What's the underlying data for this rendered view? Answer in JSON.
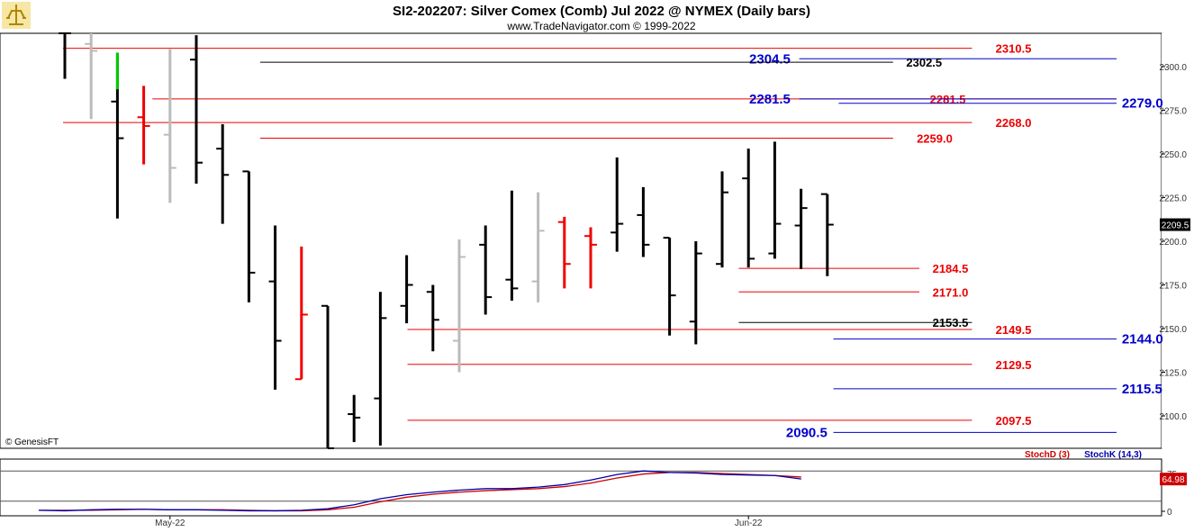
{
  "header": {
    "title": "SI2-202207:  Silver Comex (Comb) Jul 2022 @ NYMEX  (Daily bars)",
    "subtitle": "www.TradeNavigator.com © 1999-2022",
    "logo": "trade-navigator-logo"
  },
  "watermark": "© GenesisFT",
  "colors": {
    "up_bar": "#000000",
    "down_bar": "#ee0000",
    "gray_bar": "#bbbbbb",
    "highlight": "#00cc00",
    "red_level": "#ee0000",
    "blue_level": "#0000cc",
    "black_level": "#000000",
    "stochD": "#cc0000",
    "stochK": "#0000aa"
  },
  "chart_data": {
    "type": "ohlc",
    "price_axis": {
      "ylim": [
        2085,
        2320
      ],
      "ticks": [
        "2100.0",
        "2125.0",
        "2150.0",
        "2175.0",
        "2200.0",
        "2225.0",
        "2250.0",
        "2275.0",
        "2300.0"
      ],
      "tick_values": [
        2100,
        2125,
        2150,
        2175,
        2200,
        2225,
        2250,
        2275,
        2300
      ],
      "last_price": "2209.5"
    },
    "x_axis": {
      "labels": [
        {
          "text": "May-22",
          "index": 4
        },
        {
          "text": "Jun-22",
          "index": 26
        }
      ]
    },
    "bars": [
      {
        "o": 2320,
        "h": 2319,
        "l": 2293,
        "c": 2320,
        "color": "black"
      },
      {
        "o": 2313,
        "h": 2320,
        "l": 2270,
        "c": 2309,
        "color": "gray"
      },
      {
        "o": 2280,
        "h": 2308,
        "l": 2213,
        "c": 2259,
        "color": "black",
        "highlight_to": 2287
      },
      {
        "o": 2271,
        "h": 2289,
        "l": 2244,
        "c": 2266,
        "color": "red"
      },
      {
        "o": 2261,
        "h": 2310,
        "l": 2222,
        "c": 2242,
        "color": "gray"
      },
      {
        "o": 2304,
        "h": 2318,
        "l": 2233,
        "c": 2245,
        "color": "black"
      },
      {
        "o": 2253,
        "h": 2267,
        "l": 2210,
        "c": 2238,
        "color": "black"
      },
      {
        "o": 2240,
        "h": 2240,
        "l": 2165,
        "c": 2182,
        "color": "black"
      },
      {
        "o": 2177,
        "h": 2209,
        "l": 2115,
        "c": 2143,
        "color": "black"
      },
      {
        "o": 2121,
        "h": 2197,
        "l": 2121,
        "c": 2158,
        "color": "red"
      },
      {
        "o": 2163,
        "h": 2163,
        "l": 2080,
        "c": 2080,
        "color": "black"
      },
      {
        "o": 2101,
        "h": 2112,
        "l": 2085,
        "c": 2099,
        "color": "black"
      },
      {
        "o": 2110,
        "h": 2171,
        "l": 2083,
        "c": 2156,
        "color": "black"
      },
      {
        "o": 2163,
        "h": 2192,
        "l": 2153,
        "c": 2175,
        "color": "black"
      },
      {
        "o": 2171,
        "h": 2175,
        "l": 2137,
        "c": 2155,
        "color": "black"
      },
      {
        "o": 2143,
        "h": 2201,
        "l": 2125,
        "c": 2191,
        "color": "gray"
      },
      {
        "o": 2198,
        "h": 2209,
        "l": 2158,
        "c": 2168,
        "color": "black"
      },
      {
        "o": 2178,
        "h": 2229,
        "l": 2166,
        "c": 2173,
        "color": "black"
      },
      {
        "o": 2177,
        "h": 2228,
        "l": 2165,
        "c": 2206,
        "color": "gray"
      },
      {
        "o": 2211,
        "h": 2214,
        "l": 2173,
        "c": 2187,
        "color": "red"
      },
      {
        "o": 2203,
        "h": 2208,
        "l": 2173,
        "c": 2198,
        "color": "red"
      },
      {
        "o": 2205,
        "h": 2248,
        "l": 2194,
        "c": 2210,
        "color": "black"
      },
      {
        "o": 2215,
        "h": 2231,
        "l": 2191,
        "c": 2198,
        "color": "black"
      },
      {
        "o": 2202,
        "h": 2202,
        "l": 2146,
        "c": 2169,
        "color": "black"
      },
      {
        "o": 2154,
        "h": 2200,
        "l": 2141,
        "c": 2193,
        "color": "black"
      },
      {
        "o": 2187,
        "h": 2240,
        "l": 2185,
        "c": 2228,
        "color": "black"
      },
      {
        "o": 2236,
        "h": 2253,
        "l": 2185,
        "c": 2190,
        "color": "black"
      },
      {
        "o": 2193,
        "h": 2257,
        "l": 2190,
        "c": 2210,
        "color": "black"
      },
      {
        "o": 2209,
        "h": 2230,
        "l": 2184,
        "c": 2219,
        "color": "black"
      },
      {
        "o": 2227,
        "h": 2227,
        "l": 2180,
        "c": 2209.5,
        "color": "black"
      }
    ],
    "levels": [
      {
        "value": 2310.5,
        "label": "2310.5",
        "color": "red",
        "from": 0,
        "to": 34.5,
        "label_at": 35.4
      },
      {
        "value": 2304.5,
        "label": "2304.5",
        "color": "blue",
        "from": 28.0,
        "to": 40.0,
        "label_at": 27.6,
        "label_side": "left",
        "big": true
      },
      {
        "value": 2302.5,
        "label": "2302.5",
        "color": "black",
        "from": 7.5,
        "to": 31.5,
        "label_at": 32.0
      },
      {
        "value": 2281.5,
        "label": "2281.5",
        "color": "red",
        "from": 3.4,
        "to": 40.0,
        "label_at": 32.9
      },
      {
        "value": 2281.5,
        "label": "2281.5",
        "color": "blue",
        "from": 28.0,
        "to": 40.0,
        "label_at": 27.6,
        "label_side": "left",
        "big": true
      },
      {
        "value": 2279.0,
        "label": "2279.0",
        "color": "blue",
        "from": 29.5,
        "to": 40.0,
        "label_at": 40.2,
        "big": true
      },
      {
        "value": 2268.0,
        "label": "2268.0",
        "color": "red",
        "from": 0,
        "to": 34.5,
        "label_at": 35.4
      },
      {
        "value": 2259.0,
        "label": "2259.0",
        "color": "red",
        "from": 7.5,
        "to": 31.5,
        "label_at": 32.4
      },
      {
        "value": 2184.5,
        "label": "2184.5",
        "color": "red",
        "from": 25.7,
        "to": 32.5,
        "label_at": 33.0
      },
      {
        "value": 2171.0,
        "label": "2171.0",
        "color": "red",
        "from": 25.7,
        "to": 32.5,
        "label_at": 33.0
      },
      {
        "value": 2153.5,
        "label": "2153.5",
        "color": "black",
        "from": 25.7,
        "to": 34.5,
        "label_at": 33.0
      },
      {
        "value": 2149.5,
        "label": "2149.5",
        "color": "red",
        "from": 13.1,
        "to": 34.5,
        "label_at": 35.4
      },
      {
        "value": 2144.0,
        "label": "2144.0",
        "color": "blue",
        "from": 29.3,
        "to": 40.0,
        "label_at": 40.2,
        "big": true
      },
      {
        "value": 2129.5,
        "label": "2129.5",
        "color": "red",
        "from": 13.1,
        "to": 34.5,
        "label_at": 35.4
      },
      {
        "value": 2115.5,
        "label": "2115.5",
        "color": "blue",
        "from": 29.3,
        "to": 40.0,
        "label_at": 40.2,
        "big": true
      },
      {
        "value": 2097.5,
        "label": "2097.5",
        "color": "red",
        "from": 13.1,
        "to": 34.5,
        "label_at": 35.4
      },
      {
        "value": 2090.5,
        "label": "2090.5",
        "color": "blue",
        "from": 29.3,
        "to": 40.0,
        "label_at": 29.0,
        "label_side": "left",
        "big": true
      }
    ],
    "indicator": {
      "name_d": "StochD (3)",
      "name_k": "StochK (14,3)",
      "ylim": [
        0,
        100
      ],
      "ticks": [
        "0",
        "75"
      ],
      "tick_values": [
        0,
        75
      ],
      "levels": [
        80,
        20
      ],
      "last_value": "64.98",
      "stochK": [
        2,
        1,
        3,
        4,
        4,
        3,
        3,
        2,
        1,
        1,
        2,
        5,
        13,
        25,
        33,
        38,
        42,
        45,
        45,
        48,
        53,
        62,
        73,
        80,
        77,
        76,
        73,
        72,
        71,
        64
      ],
      "stochD": [
        2,
        2,
        2,
        3,
        4,
        3,
        3,
        3,
        2,
        1,
        1,
        3,
        8,
        19,
        28,
        34,
        38,
        41,
        43,
        45,
        49,
        56,
        66,
        74,
        77,
        77,
        75,
        73,
        71,
        68
      ]
    }
  }
}
